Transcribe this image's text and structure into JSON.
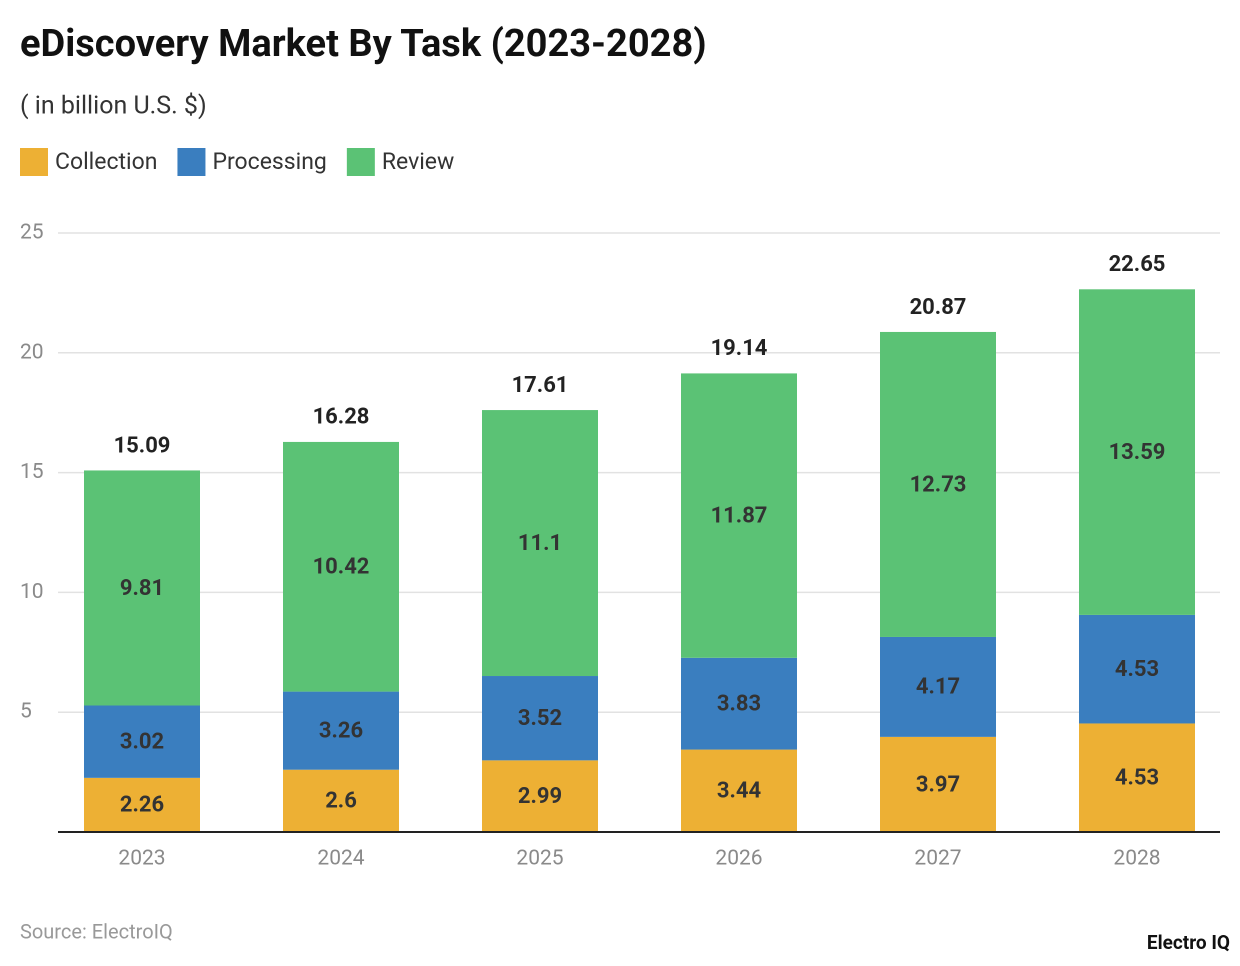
{
  "chart_data": {
    "type": "stacked_bar",
    "title": "eDiscovery Market By Task (2023-2028)",
    "subtitle": "( in billion U.S. $)",
    "categories": [
      "2023",
      "2024",
      "2025",
      "2026",
      "2027",
      "2028"
    ],
    "series": [
      {
        "name": "Collection",
        "color": "#edb034",
        "values": [
          2.26,
          2.6,
          2.99,
          3.44,
          3.97,
          4.53
        ]
      },
      {
        "name": "Processing",
        "color": "#3a7ebf",
        "values": [
          3.02,
          3.26,
          3.52,
          3.83,
          4.17,
          4.53
        ]
      },
      {
        "name": "Review",
        "color": "#5bc275",
        "values": [
          9.81,
          10.42,
          11.1,
          11.87,
          12.73,
          13.59
        ]
      }
    ],
    "totals": [
      15.09,
      16.28,
      17.61,
      19.14,
      20.87,
      22.65
    ],
    "ylim": [
      0,
      25
    ],
    "yticks": [
      5,
      10,
      15,
      20,
      25
    ],
    "grid": true,
    "legend": "top-left",
    "source": "Source: ElectroIQ",
    "brand": "Electro IQ"
  }
}
